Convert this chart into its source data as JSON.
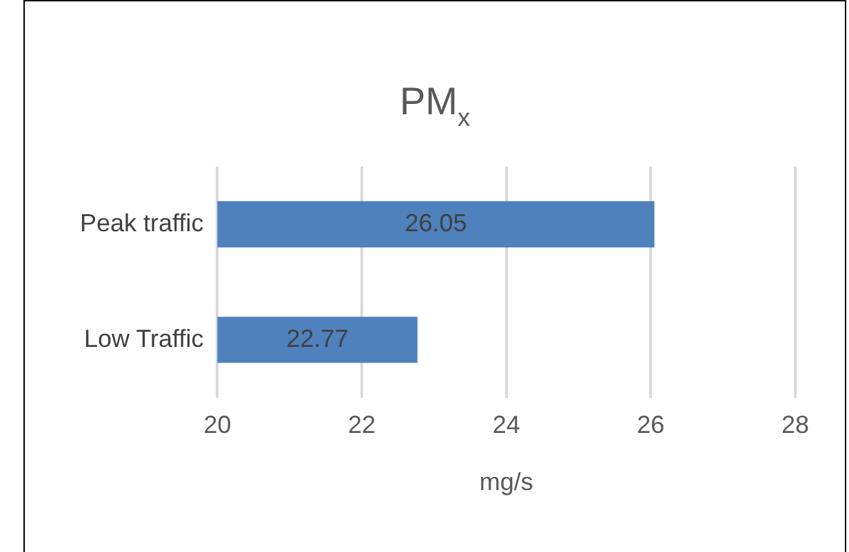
{
  "chart_data": {
    "type": "bar",
    "orientation": "horizontal",
    "title": "PM$_{x}$",
    "xlabel": "mg/s",
    "categories": [
      "Peak traffic",
      "Low Traffic"
    ],
    "values": [
      26.05,
      22.77
    ],
    "color": "#4f81bd",
    "xlim": [
      20,
      28
    ],
    "xticks": [
      20,
      22,
      24,
      26,
      28
    ],
    "grid": "x",
    "data_labels": true
  }
}
